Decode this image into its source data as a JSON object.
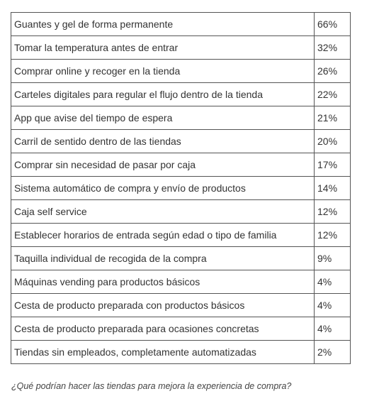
{
  "table": {
    "rows": [
      [
        "Guantes y gel de forma permanente",
        "66%"
      ],
      [
        "Tomar la temperatura antes de entrar",
        "32%"
      ],
      [
        "Comprar online y recoger en la tienda",
        "26%"
      ],
      [
        "Carteles digitales para regular el flujo dentro de la tienda",
        "22%"
      ],
      [
        "App que avise del tiempo de espera",
        "21%"
      ],
      [
        "Carril de sentido dentro de las tiendas",
        "20%"
      ],
      [
        "Comprar sin necesidad de pasar por caja",
        "17%"
      ],
      [
        "Sistema automático de compra y envío de productos",
        "14%"
      ],
      [
        "Caja self service",
        "12%"
      ],
      [
        "Establecer horarios de entrada según edad o tipo de familia",
        "12%"
      ],
      [
        "Taquilla individual de recogida de la compra",
        "9%"
      ],
      [
        "Máquinas vending para productos básicos",
        "4%"
      ],
      [
        "Cesta de producto preparada con productos básicos",
        "4%"
      ],
      [
        "Cesta de producto preparada para ocasiones concretas",
        "4%"
      ],
      [
        "Tiendas sin empleados, completamente automatizadas",
        "2%"
      ]
    ]
  },
  "caption": "¿Qué podrían hacer las tiendas para mejora la experiencia de compra?"
}
